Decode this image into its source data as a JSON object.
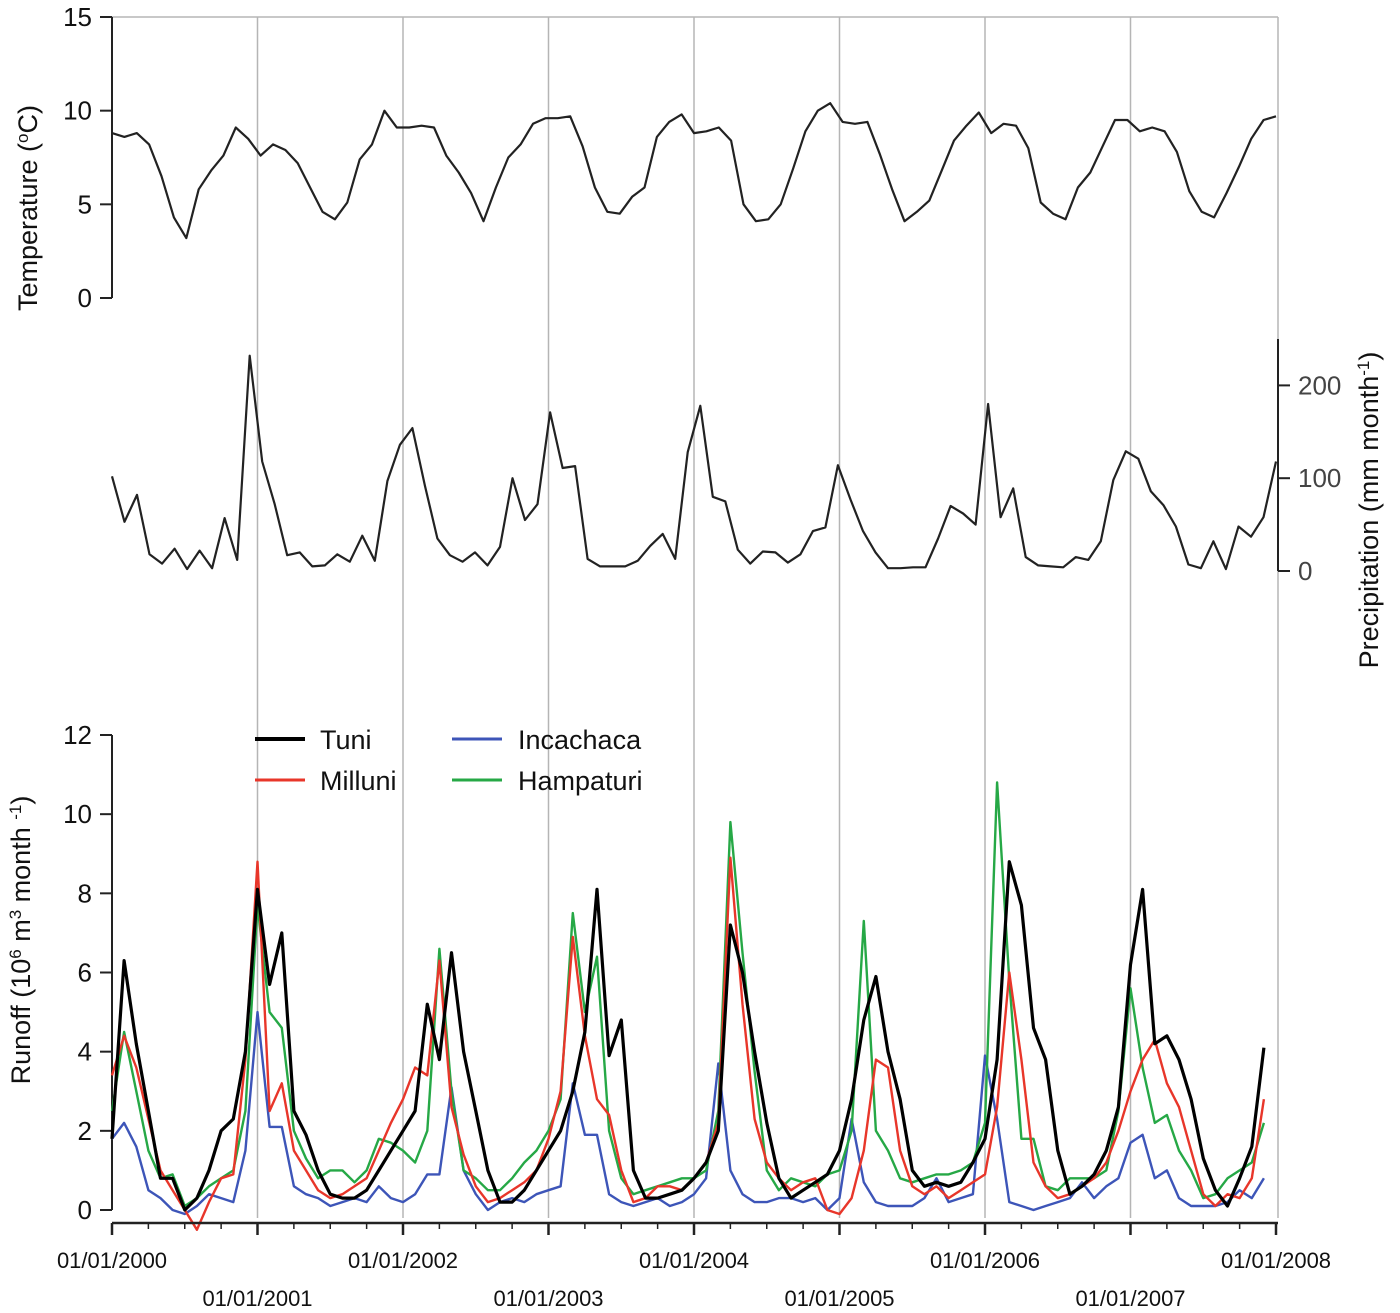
{
  "chart_data": [
    {
      "type": "line",
      "panel": "temperature",
      "ylabel": "Temperature (°C)",
      "ylabel_parts": {
        "pre": "Temperature (",
        "sup": "o",
        "post": "C)"
      },
      "ylim": [
        0,
        15
      ],
      "yticks": [
        "0",
        "5",
        "10",
        "15"
      ],
      "yticks_values": [
        0,
        5,
        10,
        15
      ],
      "start_year": 2000,
      "series": [
        {
          "color": "#222222",
          "values": [
            8.8,
            8.6,
            8.8,
            8.2,
            6.5,
            4.3,
            3.2,
            5.8,
            6.8,
            7.6,
            9.1,
            8.5,
            7.6,
            8.2,
            7.9,
            7.2,
            5.9,
            4.6,
            4.2,
            5.1,
            7.4,
            8.2,
            10.0,
            9.1,
            9.1,
            9.2,
            9.1,
            7.6,
            6.7,
            5.6,
            4.1,
            5.9,
            7.5,
            8.2,
            9.3,
            9.6,
            9.6,
            9.7,
            8.1,
            5.9,
            4.6,
            4.5,
            5.4,
            5.9,
            8.6,
            9.4,
            9.8,
            8.8,
            8.9,
            9.1,
            8.4,
            5.0,
            4.1,
            4.2,
            5.0,
            6.9,
            8.9,
            10.0,
            10.4,
            9.4,
            9.3,
            9.4,
            7.7,
            5.8,
            4.1,
            4.6,
            5.2,
            6.8,
            8.4,
            9.2,
            9.9,
            8.8,
            9.3,
            9.2,
            8.0,
            5.1,
            4.5,
            4.2,
            5.9,
            6.7,
            8.1,
            9.5,
            9.5,
            8.9,
            9.1,
            8.9,
            7.8,
            5.7,
            4.6,
            4.3,
            5.6,
            7.0,
            8.5,
            9.5,
            9.7
          ]
        }
      ]
    },
    {
      "type": "line",
      "panel": "precipitation",
      "ylabel": "Precipitation (mm month⁻¹)",
      "ylabel_parts": {
        "pre": "Precipitation (mm month",
        "sup": "-1",
        "post": ")"
      },
      "ylim": [
        0,
        250
      ],
      "yticks": [
        "0",
        "100",
        "200"
      ],
      "yticks_values": [
        0,
        100,
        200
      ],
      "yaxis_side": "right",
      "start_year": 2000,
      "series": [
        {
          "color": "#222222",
          "values": [
            102,
            53,
            82,
            18,
            8,
            24,
            2,
            22,
            3,
            57,
            12,
            232,
            118,
            72,
            17,
            20,
            5,
            6,
            18,
            10,
            38,
            11,
            97,
            136,
            154,
            92,
            35,
            17,
            10,
            20,
            6,
            26,
            100,
            55,
            72,
            171,
            111,
            113,
            13,
            5,
            5,
            5,
            11,
            27,
            40,
            13,
            128,
            178,
            80,
            75,
            23,
            8,
            21,
            20,
            9,
            18,
            43,
            47,
            114,
            77,
            43,
            20,
            3,
            3,
            4,
            4,
            35,
            70,
            62,
            50,
            180,
            58,
            89,
            15,
            6,
            5,
            4,
            15,
            12,
            32,
            98,
            129,
            121,
            86,
            71,
            48,
            7,
            3,
            32,
            2,
            48,
            37,
            58,
            118
          ]
        }
      ]
    },
    {
      "type": "line",
      "panel": "runoff",
      "ylabel": "Runoff (10⁶ m³ month⁻¹)",
      "ylabel_parts": {
        "a": "Runoff (10",
        "sup1": "6",
        "b": " m",
        "sup2": "3",
        "c": " month ",
        "sup3": "-1",
        "d": ")"
      },
      "ylim": [
        0,
        12
      ],
      "yticks": [
        "0",
        "2",
        "4",
        "6",
        "8",
        "10",
        "12"
      ],
      "yticks_values": [
        0,
        2,
        4,
        6,
        8,
        10,
        12
      ],
      "start_year": 2000,
      "x_end": 95,
      "legend_placement": "top-left",
      "series": [
        {
          "name": "Tuni",
          "color": "#000000",
          "width": 3.2,
          "values": [
            1.8,
            6.3,
            4.2,
            2.5,
            0.8,
            0.8,
            0.0,
            0.3,
            1.0,
            2.0,
            2.3,
            4.0,
            8.1,
            5.7,
            7.0,
            2.5,
            1.9,
            1.0,
            0.4,
            0.3,
            0.3,
            0.5,
            1.0,
            1.5,
            2.0,
            2.5,
            5.2,
            3.8,
            6.5,
            4.0,
            2.5,
            1.0,
            0.2,
            0.2,
            0.5,
            1.0,
            1.5,
            2.0,
            3.0,
            4.5,
            8.1,
            3.9,
            4.8,
            1.0,
            0.3,
            0.3,
            0.4,
            0.5,
            0.8,
            1.2,
            2.0,
            7.2,
            6.0,
            4.0,
            2.2,
            0.8,
            0.3,
            0.5,
            0.7,
            0.9,
            1.5,
            2.8,
            4.8,
            5.9,
            4.0,
            2.8,
            1.0,
            0.6,
            0.7,
            0.6,
            0.7,
            1.2,
            1.8,
            3.8,
            8.8,
            7.7,
            4.6,
            3.8,
            1.5,
            0.4,
            0.6,
            0.9,
            1.5,
            2.6,
            6.2,
            8.1,
            4.2,
            4.4,
            3.8,
            2.8,
            1.3,
            0.5,
            0.1,
            0.8,
            1.6,
            4.1
          ]
        },
        {
          "name": "Milluni",
          "color": "#e8362a",
          "width": 2.4,
          "values": [
            3.4,
            4.4,
            3.6,
            2.3,
            1.0,
            0.5,
            0.0,
            -0.5,
            0.2,
            0.8,
            0.9,
            3.8,
            8.8,
            2.5,
            3.2,
            1.5,
            1.0,
            0.5,
            0.3,
            0.4,
            0.6,
            0.8,
            1.5,
            2.2,
            2.8,
            3.6,
            3.4,
            6.3,
            2.6,
            1.4,
            0.6,
            0.2,
            0.3,
            0.5,
            0.7,
            1.0,
            1.8,
            3.0,
            6.9,
            4.4,
            2.8,
            2.4,
            1.0,
            0.2,
            0.3,
            0.6,
            0.6,
            0.5,
            0.8,
            1.2,
            2.2,
            8.9,
            5.2,
            2.3,
            1.2,
            0.8,
            0.5,
            0.7,
            0.8,
            0.0,
            -0.1,
            0.3,
            1.5,
            3.8,
            3.6,
            1.5,
            0.6,
            0.4,
            0.6,
            0.3,
            0.5,
            0.7,
            0.9,
            2.6,
            6.0,
            3.8,
            1.2,
            0.6,
            0.3,
            0.4,
            0.6,
            0.8,
            1.2,
            2.0,
            3.0,
            3.8,
            4.3,
            3.2,
            2.6,
            1.5,
            0.4,
            0.1,
            0.4,
            0.3,
            0.8,
            2.8
          ]
        },
        {
          "name": "Incachaca",
          "color": "#3d55b8",
          "width": 2.4,
          "values": [
            1.8,
            2.2,
            1.6,
            0.5,
            0.3,
            0.0,
            -0.1,
            0.1,
            0.4,
            0.3,
            0.2,
            1.5,
            5.0,
            2.1,
            2.1,
            0.6,
            0.4,
            0.3,
            0.1,
            0.2,
            0.3,
            0.2,
            0.6,
            0.3,
            0.2,
            0.4,
            0.9,
            0.9,
            3.1,
            1.0,
            0.4,
            0.0,
            0.2,
            0.3,
            0.2,
            0.4,
            0.5,
            0.6,
            3.2,
            1.9,
            1.9,
            0.4,
            0.2,
            0.1,
            0.2,
            0.3,
            0.1,
            0.2,
            0.4,
            0.8,
            3.7,
            1.0,
            0.4,
            0.2,
            0.2,
            0.3,
            0.3,
            0.2,
            0.3,
            0.0,
            0.3,
            2.3,
            0.7,
            0.2,
            0.1,
            0.1,
            0.1,
            0.3,
            0.8,
            0.2,
            0.3,
            0.4,
            3.9,
            2.3,
            0.2,
            0.1,
            0.0,
            0.1,
            0.2,
            0.3,
            0.7,
            0.3,
            0.6,
            0.8,
            1.7,
            1.9,
            0.8,
            1.0,
            0.3,
            0.1,
            0.1,
            0.1,
            0.2,
            0.5,
            0.3,
            0.8
          ]
        },
        {
          "name": "Hampaturi",
          "color": "#26a846",
          "width": 2.4,
          "values": [
            2.5,
            4.5,
            3.0,
            1.5,
            0.8,
            0.9,
            0.1,
            0.3,
            0.6,
            0.8,
            1.0,
            2.5,
            7.7,
            5.0,
            4.6,
            2.0,
            1.3,
            0.8,
            1.0,
            1.0,
            0.7,
            1.0,
            1.8,
            1.7,
            1.5,
            1.2,
            2.0,
            6.6,
            3.0,
            1.0,
            0.8,
            0.5,
            0.5,
            0.8,
            1.2,
            1.5,
            2.0,
            2.8,
            7.5,
            5.0,
            6.4,
            2.0,
            0.8,
            0.4,
            0.5,
            0.6,
            0.7,
            0.8,
            0.8,
            1.0,
            2.5,
            9.8,
            6.5,
            3.5,
            1.0,
            0.5,
            0.8,
            0.7,
            0.6,
            0.9,
            1.0,
            2.0,
            7.3,
            2.0,
            1.5,
            0.8,
            0.7,
            0.8,
            0.9,
            0.9,
            1.0,
            1.2,
            2.2,
            10.8,
            5.8,
            1.8,
            1.8,
            0.6,
            0.5,
            0.8,
            0.8,
            0.8,
            1.0,
            2.5,
            5.6,
            3.6,
            2.2,
            2.4,
            1.5,
            1.0,
            0.3,
            0.4,
            0.8,
            1.0,
            1.2,
            2.2
          ]
        }
      ]
    }
  ],
  "x_axis": {
    "upper_labels": [
      "01/01/2000",
      "01/01/2002",
      "01/01/2004",
      "01/01/2006",
      "01/01/2008"
    ],
    "lower_labels": [
      "01/01/2001",
      "01/01/2003",
      "01/01/2005",
      "01/01/2007"
    ],
    "gridline_years": [
      2001,
      2002,
      2003,
      2004,
      2005,
      2006,
      2007
    ]
  },
  "colors": {
    "grid": "#b5b5b5",
    "axis": "#222222"
  }
}
